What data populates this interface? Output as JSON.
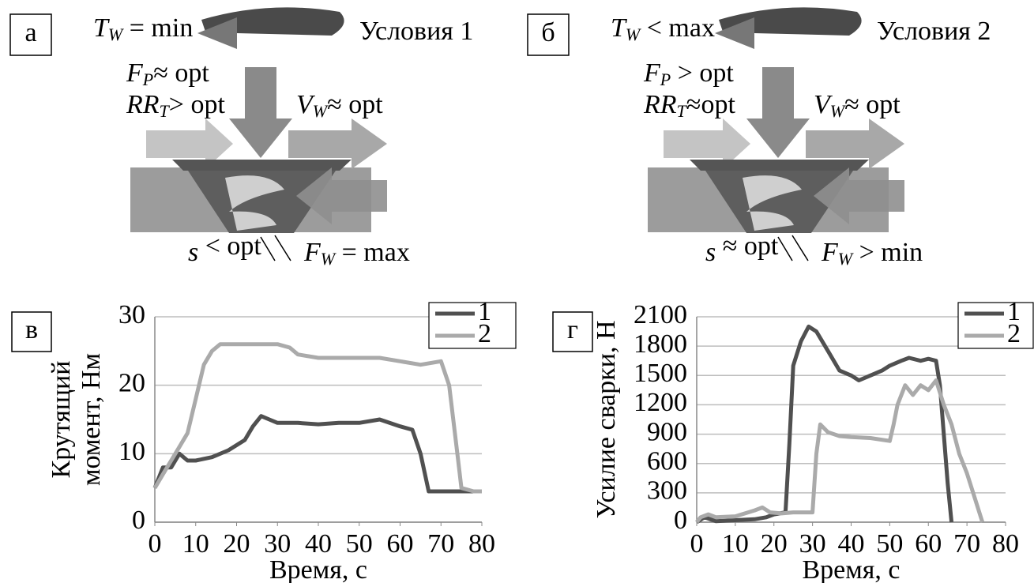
{
  "diagrams": [
    {
      "letter": "а",
      "title": "Условия 1",
      "labels": [
        {
          "symbol": "T",
          "sub": "W",
          "rel": " = min"
        },
        {
          "symbol": "F",
          "sub": "P",
          "rel": "≈ opt"
        },
        {
          "symbol": "RR",
          "sub": "T",
          "rel": "> opt"
        },
        {
          "symbol": "V",
          "sub": "W",
          "rel": "≈ opt"
        },
        {
          "symbol": "s",
          "sub": "",
          "rel": " < opt"
        },
        {
          "symbol": "F",
          "sub": "W",
          "rel": " = max"
        }
      ]
    },
    {
      "letter": "б",
      "title": "Условия 2",
      "labels": [
        {
          "symbol": "T",
          "sub": "W",
          "rel": " < max"
        },
        {
          "symbol": "F",
          "sub": "P",
          "rel": " > opt"
        },
        {
          "symbol": "RR",
          "sub": "T",
          "rel": "≈opt"
        },
        {
          "symbol": "V",
          "sub": "W",
          "rel": "≈ opt"
        },
        {
          "symbol": "s",
          "sub": "",
          "rel": " ≈ opt"
        },
        {
          "symbol": "F",
          "sub": "W",
          "rel": " > min"
        }
      ]
    }
  ],
  "chart_data": [
    {
      "type": "line",
      "letter": "в",
      "ylabel": [
        "Крутящий",
        "момент, Нм"
      ],
      "xlabel": "Время, с",
      "xlim": [
        0,
        80
      ],
      "ylim": [
        0,
        30
      ],
      "xticks": [
        0,
        10,
        20,
        30,
        40,
        50,
        60,
        70,
        80
      ],
      "yticks": [
        0,
        10,
        20,
        30
      ],
      "grid": true,
      "legend": "top-right",
      "series": [
        {
          "name": "1",
          "color": "#505050",
          "x": [
            0,
            2,
            4,
            6,
            8,
            10,
            14,
            18,
            22,
            24,
            26,
            28,
            30,
            35,
            40,
            45,
            50,
            55,
            60,
            63,
            65,
            67,
            70,
            75,
            80
          ],
          "values": [
            5,
            8,
            8,
            10,
            9,
            9,
            9.5,
            10.5,
            12,
            14,
            15.5,
            15,
            14.5,
            14.5,
            14.3,
            14.5,
            14.5,
            15,
            14,
            13.5,
            10,
            4.5,
            4.5,
            4.5,
            4.5
          ]
        },
        {
          "name": "2",
          "color": "#aaaaaa",
          "x": [
            0,
            2,
            4,
            6,
            8,
            10,
            12,
            14,
            16,
            20,
            25,
            30,
            33,
            35,
            40,
            45,
            50,
            55,
            60,
            65,
            70,
            72,
            74,
            75,
            78,
            80
          ],
          "values": [
            5,
            7,
            9,
            11,
            13,
            18,
            23,
            25,
            26,
            26,
            26,
            26,
            25.5,
            24.5,
            24,
            24,
            24,
            24,
            23.5,
            23,
            23.5,
            20,
            10,
            5,
            4.5,
            4.5
          ]
        }
      ]
    },
    {
      "type": "line",
      "letter": "г",
      "ylabel": [
        "Усилие сварки, Н"
      ],
      "xlabel": "Время, с",
      "xlim": [
        0,
        80
      ],
      "ylim": [
        0,
        2100
      ],
      "xticks": [
        0,
        10,
        20,
        30,
        40,
        50,
        60,
        70,
        80
      ],
      "yticks": [
        0,
        300,
        600,
        900,
        1200,
        1500,
        1800,
        2100
      ],
      "grid": true,
      "legend": "top-right",
      "series": [
        {
          "name": "1",
          "color": "#505050",
          "x": [
            0,
            2,
            5,
            10,
            15,
            18,
            20,
            23,
            24,
            25,
            27,
            29,
            31,
            34,
            37,
            40,
            42,
            45,
            48,
            50,
            53,
            55,
            58,
            60,
            62,
            63,
            64,
            65,
            66
          ],
          "values": [
            0,
            50,
            10,
            20,
            30,
            50,
            80,
            100,
            800,
            1600,
            1850,
            2000,
            1950,
            1750,
            1550,
            1500,
            1450,
            1500,
            1550,
            1600,
            1650,
            1680,
            1650,
            1670,
            1650,
            1400,
            900,
            400,
            0
          ]
        },
        {
          "name": "2",
          "color": "#aaaaaa",
          "x": [
            0,
            1,
            3,
            5,
            10,
            15,
            17,
            19,
            22,
            25,
            28,
            30,
            31,
            32,
            34,
            37,
            40,
            45,
            50,
            51,
            52,
            54,
            56,
            58,
            60,
            62,
            64,
            66,
            68,
            70,
            72,
            74
          ],
          "values": [
            0,
            50,
            80,
            50,
            60,
            120,
            150,
            100,
            90,
            100,
            100,
            100,
            700,
            1000,
            920,
            880,
            870,
            860,
            830,
            1000,
            1200,
            1400,
            1300,
            1400,
            1350,
            1450,
            1200,
            1000,
            700,
            500,
            250,
            0
          ]
        }
      ]
    }
  ]
}
